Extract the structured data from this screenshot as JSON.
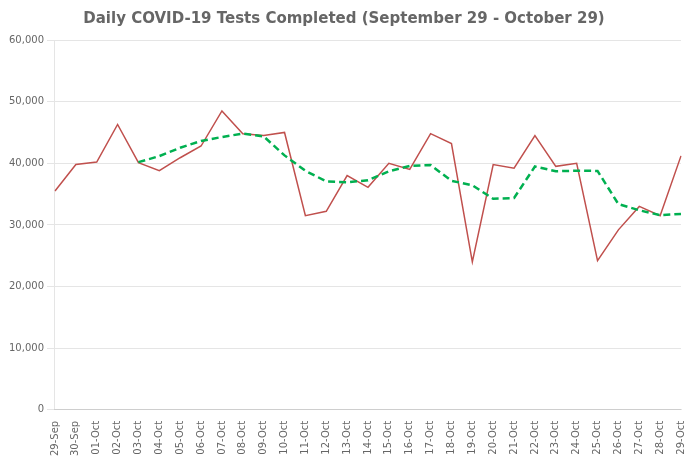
{
  "chart_data": {
    "type": "line",
    "title": "Daily COVID-19 Tests Completed (September 29 - October 29)",
    "categories": [
      "29-Sep",
      "30-Sep",
      "01-Oct",
      "02-Oct",
      "03-Oct",
      "04-Oct",
      "05-Oct",
      "06-Oct",
      "07-Oct",
      "08-Oct",
      "09-Oct",
      "10-Oct",
      "11-Oct",
      "12-Oct",
      "13-Oct",
      "14-Oct",
      "15-Oct",
      "16-Oct",
      "17-Oct",
      "18-Oct",
      "19-Oct",
      "20-Oct",
      "21-Oct",
      "22-Oct",
      "23-Oct",
      "24-Oct",
      "25-Oct",
      "26-Oct",
      "27-Oct",
      "28-Oct",
      "29-Oct"
    ],
    "series": [
      {
        "color": "#c0504d",
        "line_style": "solid",
        "values": [
          35500,
          39800,
          40200,
          46300,
          40100,
          38800,
          40900,
          42800,
          48500,
          44800,
          44500,
          45000,
          31500,
          32200,
          38000,
          36100,
          40000,
          39000,
          44800,
          43200,
          24000,
          39800,
          39200,
          44500,
          39500,
          40000,
          24200,
          29200,
          33000,
          31500,
          41200
        ]
      },
      {
        "color": "#00b050",
        "line_style": "dashed",
        "values": [
          null,
          null,
          null,
          null,
          40180,
          41160,
          42520,
          43620,
          44260,
          44820,
          44360,
          41280,
          38780,
          37060,
          36920,
          37240,
          38700,
          39580,
          39720,
          37160,
          36440,
          34240,
          34360,
          39480,
          38700,
          38800,
          38760,
          33380,
          32380,
          31580,
          31780
        ]
      }
    ],
    "ylim": [
      0,
      60000
    ],
    "yticks": [
      0,
      {
        "value": 10000,
        "label": "10,000"
      },
      {
        "value": 20000,
        "label": "20,000"
      },
      {
        "value": 30000,
        "label": "30,000"
      },
      {
        "value": 40000,
        "label": "40,000"
      },
      {
        "value": 50000,
        "label": "50,000"
      },
      {
        "value": 60000,
        "label": "60,000"
      }
    ],
    "grid": true
  }
}
